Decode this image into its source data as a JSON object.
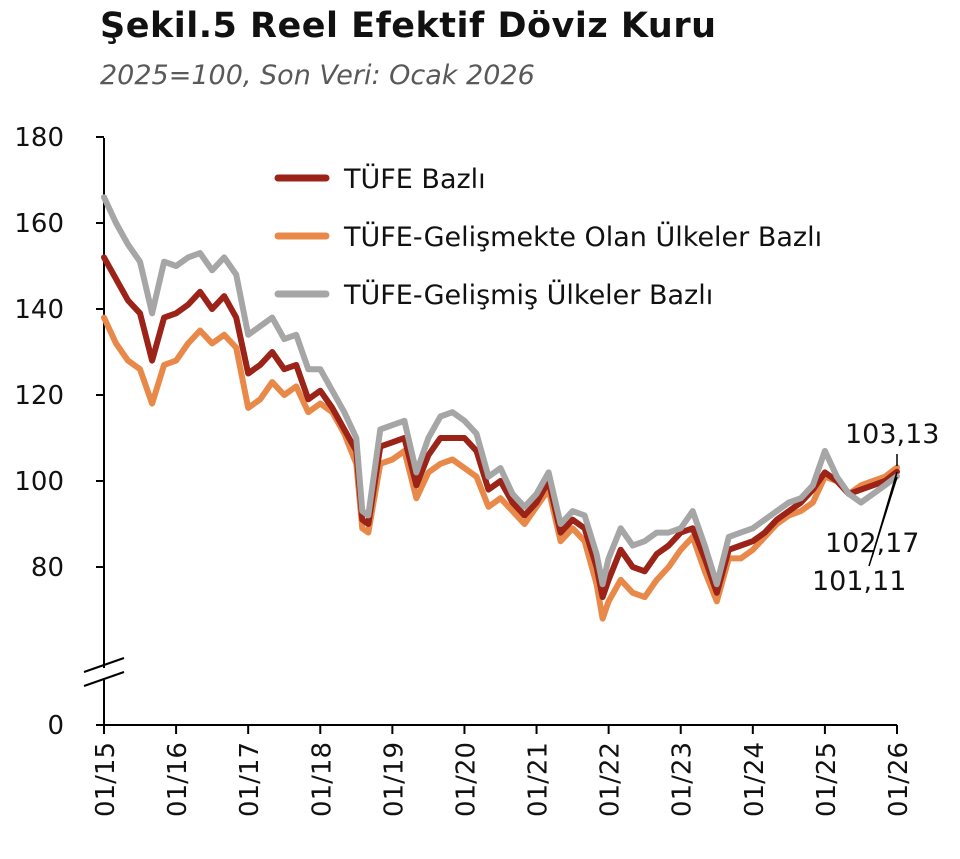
{
  "title": "Şekil.5 Reel Efektif Döviz Kuru",
  "subtitle": "2025=100, Son Veri: Ocak 2026",
  "chart_data": {
    "type": "line",
    "title": "Şekil.5 Reel Efektif Döviz Kuru",
    "subtitle": "2025=100, Son Veri: Ocak 2026",
    "xlabel": "",
    "ylabel": "",
    "x_tick_labels": [
      "01/15",
      "01/16",
      "01/17",
      "01/18",
      "01/19",
      "01/20",
      "01/21",
      "01/22",
      "01/23",
      "01/24",
      "01/25",
      "01/26"
    ],
    "y_ticks": [
      0,
      80,
      100,
      120,
      140,
      160,
      180
    ],
    "y_axis_break": true,
    "ylim": [
      0,
      180
    ],
    "grid": false,
    "legend_position": "top-left",
    "colors": {
      "tufe": "#9B2318",
      "gelismekte": "#E8894A",
      "gelismis": "#A6A6A6"
    },
    "series": [
      {
        "name": "TÜFE Bazlı",
        "key": "tufe",
        "points": [
          [
            "01/15",
            152
          ],
          [
            "03/15",
            147
          ],
          [
            "05/15",
            142
          ],
          [
            "07/15",
            139
          ],
          [
            "09/15",
            128
          ],
          [
            "11/15",
            138
          ],
          [
            "01/16",
            139
          ],
          [
            "03/16",
            141
          ],
          [
            "05/16",
            144
          ],
          [
            "07/16",
            140
          ],
          [
            "09/16",
            143
          ],
          [
            "11/16",
            138
          ],
          [
            "01/17",
            125
          ],
          [
            "03/17",
            127
          ],
          [
            "05/17",
            130
          ],
          [
            "07/17",
            126
          ],
          [
            "09/17",
            127
          ],
          [
            "11/17",
            119
          ],
          [
            "01/18",
            121
          ],
          [
            "03/18",
            117
          ],
          [
            "05/18",
            112
          ],
          [
            "07/18",
            107
          ],
          [
            "08/18",
            91
          ],
          [
            "09/18",
            90
          ],
          [
            "11/18",
            108
          ],
          [
            "01/19",
            109
          ],
          [
            "03/19",
            110
          ],
          [
            "05/19",
            99
          ],
          [
            "07/19",
            106
          ],
          [
            "09/19",
            110
          ],
          [
            "11/19",
            110
          ],
          [
            "01/20",
            110
          ],
          [
            "03/20",
            107
          ],
          [
            "05/20",
            98
          ],
          [
            "07/20",
            100
          ],
          [
            "09/20",
            95
          ],
          [
            "11/20",
            92
          ],
          [
            "01/21",
            95
          ],
          [
            "03/21",
            100
          ],
          [
            "05/21",
            88
          ],
          [
            "07/21",
            91
          ],
          [
            "09/21",
            89
          ],
          [
            "11/21",
            80
          ],
          [
            "12/21",
            73
          ],
          [
            "01/22",
            77
          ],
          [
            "03/22",
            84
          ],
          [
            "05/22",
            80
          ],
          [
            "07/22",
            79
          ],
          [
            "09/22",
            83
          ],
          [
            "11/22",
            85
          ],
          [
            "01/23",
            88
          ],
          [
            "03/23",
            89
          ],
          [
            "05/23",
            82
          ],
          [
            "07/23",
            74
          ],
          [
            "09/23",
            84
          ],
          [
            "11/23",
            85
          ],
          [
            "01/24",
            86
          ],
          [
            "03/24",
            88
          ],
          [
            "05/24",
            91
          ],
          [
            "07/24",
            93
          ],
          [
            "09/24",
            95
          ],
          [
            "11/24",
            98
          ],
          [
            "01/25",
            102
          ],
          [
            "03/25",
            100
          ],
          [
            "05/25",
            97
          ],
          [
            "07/25",
            98
          ],
          [
            "09/25",
            99
          ],
          [
            "11/25",
            100
          ],
          [
            "01/26",
            102.17
          ]
        ]
      },
      {
        "name": "TÜFE-Gelişmekte Olan Ülkeler Bazlı",
        "key": "gelismekte",
        "points": [
          [
            "01/15",
            138
          ],
          [
            "03/15",
            132
          ],
          [
            "05/15",
            128
          ],
          [
            "07/15",
            126
          ],
          [
            "09/15",
            118
          ],
          [
            "11/15",
            127
          ],
          [
            "01/16",
            128
          ],
          [
            "03/16",
            132
          ],
          [
            "05/16",
            135
          ],
          [
            "07/16",
            132
          ],
          [
            "09/16",
            134
          ],
          [
            "11/16",
            131
          ],
          [
            "01/17",
            117
          ],
          [
            "03/17",
            119
          ],
          [
            "05/17",
            123
          ],
          [
            "07/17",
            120
          ],
          [
            "09/17",
            122
          ],
          [
            "11/17",
            116
          ],
          [
            "01/18",
            118
          ],
          [
            "03/18",
            116
          ],
          [
            "05/18",
            111
          ],
          [
            "07/18",
            104
          ],
          [
            "08/18",
            89
          ],
          [
            "09/18",
            88
          ],
          [
            "11/18",
            104
          ],
          [
            "01/19",
            105
          ],
          [
            "03/19",
            107
          ],
          [
            "05/19",
            96
          ],
          [
            "07/19",
            102
          ],
          [
            "09/19",
            104
          ],
          [
            "11/19",
            105
          ],
          [
            "01/20",
            103
          ],
          [
            "03/20",
            101
          ],
          [
            "05/20",
            94
          ],
          [
            "07/20",
            96
          ],
          [
            "09/20",
            93
          ],
          [
            "11/20",
            90
          ],
          [
            "01/21",
            94
          ],
          [
            "03/21",
            98
          ],
          [
            "05/21",
            86
          ],
          [
            "07/21",
            89
          ],
          [
            "09/21",
            86
          ],
          [
            "11/21",
            76
          ],
          [
            "12/21",
            68
          ],
          [
            "01/22",
            72
          ],
          [
            "03/22",
            77
          ],
          [
            "05/22",
            74
          ],
          [
            "07/22",
            73
          ],
          [
            "09/22",
            77
          ],
          [
            "11/22",
            80
          ],
          [
            "01/23",
            84
          ],
          [
            "03/23",
            87
          ],
          [
            "05/23",
            79
          ],
          [
            "07/23",
            72
          ],
          [
            "09/23",
            82
          ],
          [
            "11/23",
            82
          ],
          [
            "01/24",
            84
          ],
          [
            "03/24",
            87
          ],
          [
            "05/24",
            90
          ],
          [
            "07/24",
            92
          ],
          [
            "09/24",
            93
          ],
          [
            "11/24",
            95
          ],
          [
            "01/25",
            101
          ],
          [
            "03/25",
            100
          ],
          [
            "05/25",
            97
          ],
          [
            "07/25",
            99
          ],
          [
            "09/25",
            100
          ],
          [
            "11/25",
            101
          ],
          [
            "01/26",
            103.13
          ]
        ]
      },
      {
        "name": "TÜFE-Gelişmiş Ülkeler Bazlı",
        "key": "gelismis",
        "points": [
          [
            "01/15",
            166
          ],
          [
            "03/15",
            160
          ],
          [
            "05/15",
            155
          ],
          [
            "07/15",
            151
          ],
          [
            "09/15",
            139
          ],
          [
            "11/15",
            151
          ],
          [
            "01/16",
            150
          ],
          [
            "03/16",
            152
          ],
          [
            "05/16",
            153
          ],
          [
            "07/16",
            149
          ],
          [
            "09/16",
            152
          ],
          [
            "11/16",
            148
          ],
          [
            "01/17",
            134
          ],
          [
            "03/17",
            136
          ],
          [
            "05/17",
            138
          ],
          [
            "07/17",
            133
          ],
          [
            "09/17",
            134
          ],
          [
            "11/17",
            126
          ],
          [
            "01/18",
            126
          ],
          [
            "03/18",
            121
          ],
          [
            "05/18",
            116
          ],
          [
            "07/18",
            110
          ],
          [
            "08/18",
            93
          ],
          [
            "09/18",
            92
          ],
          [
            "11/18",
            112
          ],
          [
            "01/19",
            113
          ],
          [
            "03/19",
            114
          ],
          [
            "05/19",
            102
          ],
          [
            "07/19",
            110
          ],
          [
            "09/19",
            115
          ],
          [
            "11/19",
            116
          ],
          [
            "01/20",
            114
          ],
          [
            "03/20",
            111
          ],
          [
            "05/20",
            101
          ],
          [
            "07/20",
            103
          ],
          [
            "09/20",
            97
          ],
          [
            "11/20",
            94
          ],
          [
            "01/21",
            97
          ],
          [
            "03/21",
            102
          ],
          [
            "05/21",
            90
          ],
          [
            "07/21",
            93
          ],
          [
            "09/21",
            92
          ],
          [
            "11/21",
            83
          ],
          [
            "12/21",
            76
          ],
          [
            "01/22",
            82
          ],
          [
            "03/22",
            89
          ],
          [
            "05/22",
            85
          ],
          [
            "07/22",
            86
          ],
          [
            "09/22",
            88
          ],
          [
            "11/22",
            88
          ],
          [
            "01/23",
            89
          ],
          [
            "03/23",
            93
          ],
          [
            "05/23",
            85
          ],
          [
            "07/23",
            76
          ],
          [
            "09/23",
            87
          ],
          [
            "11/23",
            88
          ],
          [
            "01/24",
            89
          ],
          [
            "03/24",
            91
          ],
          [
            "05/24",
            93
          ],
          [
            "07/24",
            95
          ],
          [
            "09/24",
            96
          ],
          [
            "11/24",
            99
          ],
          [
            "01/25",
            107
          ],
          [
            "03/25",
            101
          ],
          [
            "05/25",
            97
          ],
          [
            "07/25",
            95
          ],
          [
            "09/25",
            97
          ],
          [
            "11/25",
            99
          ],
          [
            "01/26",
            101.11
          ]
        ]
      }
    ],
    "annotations": [
      "103,13",
      "102,17",
      "101,11"
    ]
  }
}
